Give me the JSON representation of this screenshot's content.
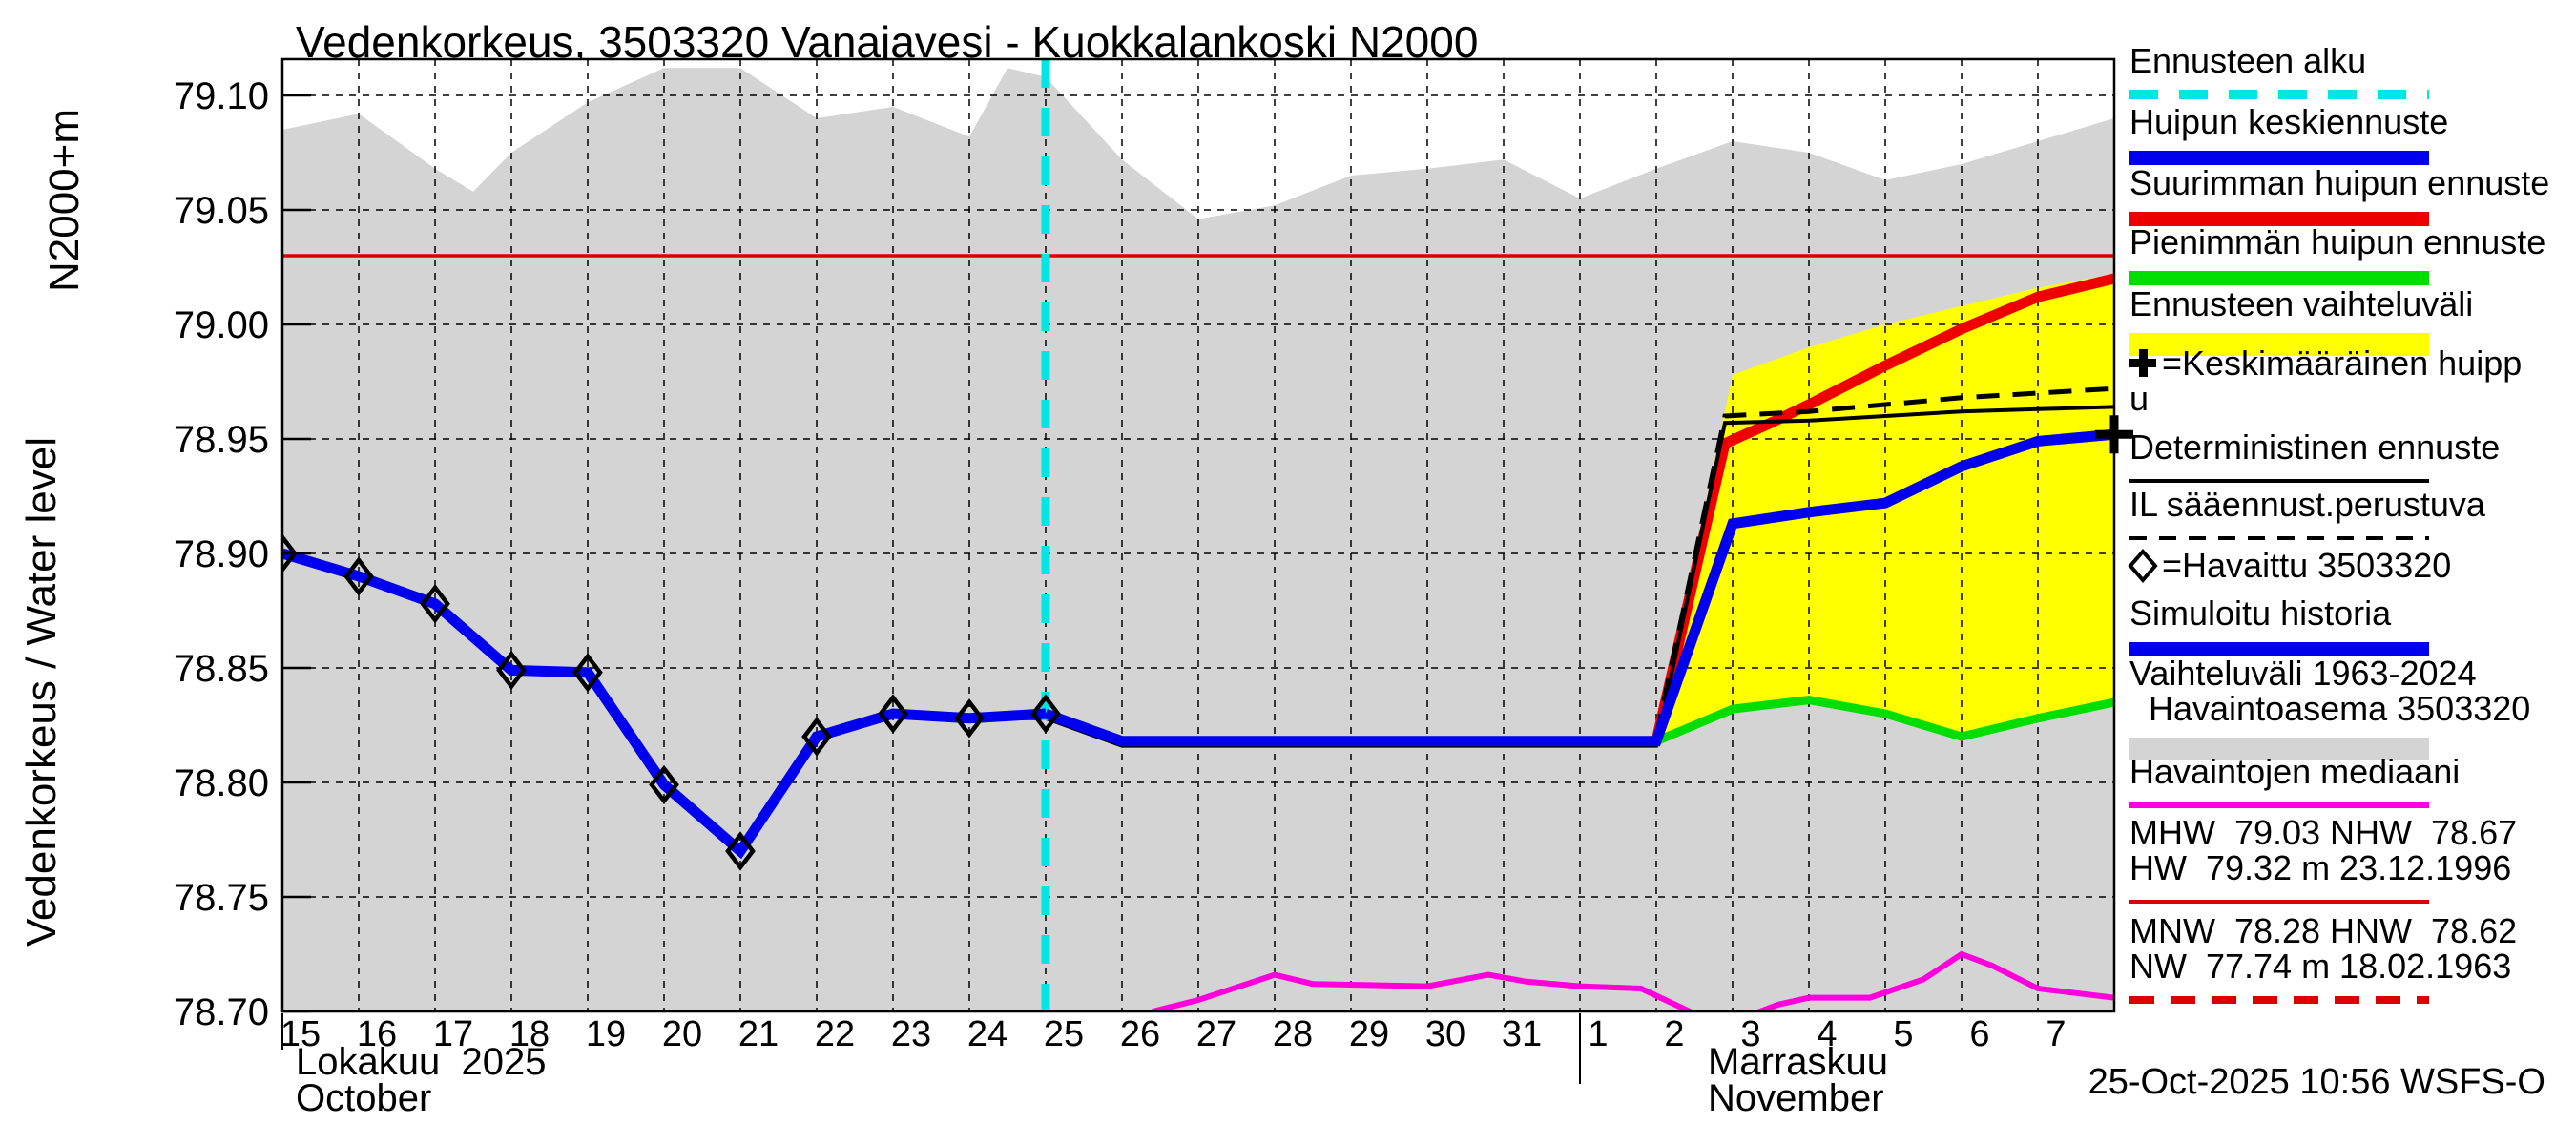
{
  "title": "Vedenkorkeus, 3503320 Vanajavesi - Kuokkalankoski N2000",
  "y_axis": {
    "axis_label": "Vedenkorkeus / Water level",
    "datum_label": "N2000+m",
    "tick_labels": [
      "79.10",
      "79.05",
      "79.00",
      "78.95",
      "78.90",
      "78.85",
      "78.80",
      "78.75",
      "78.70"
    ]
  },
  "x_axis": {
    "october_tick_labels": [
      "15",
      "16",
      "17",
      "18",
      "19",
      "20",
      "21",
      "22",
      "23",
      "24",
      "25",
      "26",
      "27",
      "28",
      "29",
      "30",
      "31"
    ],
    "november_tick_labels": [
      "1",
      "2",
      "3",
      "4",
      "5",
      "6",
      "7"
    ],
    "month_left_fi": "Lokakuu  2025",
    "month_left_en": "October",
    "month_right_fi": "Marraskuu",
    "month_right_en": "November"
  },
  "footer": {
    "timestamp": "25-Oct-2025 10:56 WSFS-O"
  },
  "legend": [
    {
      "lines": [
        "Ennusteen alku"
      ],
      "sample": "cyan-dashed"
    },
    {
      "lines": [
        "Huipun keskiennuste"
      ],
      "sample": "blue-bar"
    },
    {
      "lines": [
        "Suurimman huipun ennuste"
      ],
      "sample": "red-bar"
    },
    {
      "lines": [
        "Pienimmän huipun ennuste"
      ],
      "sample": "green-bar"
    },
    {
      "lines": [
        "Ennusteen vaihteluväli"
      ],
      "sample": "yellow-bar"
    },
    {
      "lines": [
        "+=Keskimääräinen huipp",
        "u"
      ],
      "marker": "plus"
    },
    {
      "lines": [
        "Deterministinen ennuste"
      ],
      "sample": "black-line"
    },
    {
      "lines": [
        "IL sääennust.perustuva"
      ],
      "sample": "black-dashed"
    },
    {
      "lines": [
        "◇=Havaittu 3503320"
      ],
      "marker": "diamond"
    },
    {
      "lines": [
        "Simuloitu historia"
      ],
      "sample": "blue-bar"
    },
    {
      "lines": [
        "Vaihteluväli 1963-2024",
        "  Havaintoasema 3503320"
      ],
      "sample": "gray-bar"
    },
    {
      "lines": [
        "Havaintojen mediaani"
      ],
      "sample": "magenta-line"
    },
    {
      "lines": [
        "MHW  79.03 NHW  78.67",
        "HW  79.32 m 23.12.1996"
      ],
      "sample": "red-line"
    },
    {
      "lines": [
        "MNW  78.28 HNW  78.62",
        "NW  77.74 m 18.02.1963"
      ],
      "sample": "red-dashed"
    }
  ],
  "colors": {
    "blue": "#0000ee",
    "red": "#ee0000",
    "green": "#00dd00",
    "yellow": "#ffff00",
    "cyan": "#00e6e6",
    "magenta": "#ff00dd",
    "gray_band": "#d4d4d4",
    "mhw_red": "#dd0000",
    "black": "#000000"
  },
  "chart_data": {
    "type": "line",
    "x_epoch": "2025-10-15",
    "x_unit": "days from 15 Oct 2025, axis spans 15 Oct - 8 Nov",
    "x_range_days": [
      0,
      24
    ],
    "ylim": [
      78.7,
      79.1
    ],
    "ylabel": "Vedenkorkeus / Water level (N2000+m)",
    "forecast_start_day": 10,
    "reference_lines": [
      {
        "name": "MHW",
        "value": 79.03
      }
    ],
    "series": [
      {
        "name": "havaittu_observed",
        "legend": "Havaittu 3503320",
        "color": "blue",
        "marker": "diamond",
        "points": [
          [
            0,
            78.9
          ],
          [
            1,
            78.89
          ],
          [
            2,
            78.878
          ],
          [
            3,
            78.849
          ],
          [
            4,
            78.848
          ],
          [
            5,
            78.799
          ],
          [
            6,
            78.77
          ],
          [
            7,
            78.82
          ],
          [
            8,
            78.83
          ],
          [
            9,
            78.828
          ],
          [
            10,
            78.83
          ]
        ]
      },
      {
        "name": "huipun_keskiennuste_blue",
        "legend": "Huipun keskiennuste",
        "color": "blue",
        "end_marker": "plus",
        "points": [
          [
            10,
            78.83
          ],
          [
            11,
            78.818
          ],
          [
            18,
            78.818
          ],
          [
            19,
            78.913
          ],
          [
            20,
            78.918
          ],
          [
            21,
            78.922
          ],
          [
            22,
            78.938
          ],
          [
            23,
            78.949
          ],
          [
            24,
            78.952
          ]
        ]
      },
      {
        "name": "deterministinen_black",
        "legend": "Deterministinen ennuste",
        "color": "black",
        "points": [
          [
            8,
            78.83
          ],
          [
            9,
            78.828
          ],
          [
            10,
            78.828
          ],
          [
            11,
            78.816
          ],
          [
            18,
            78.816
          ],
          [
            18.9,
            78.957
          ],
          [
            20,
            78.958
          ],
          [
            21,
            78.96
          ],
          [
            22,
            78.962
          ],
          [
            23,
            78.963
          ],
          [
            24,
            78.964
          ]
        ]
      },
      {
        "name": "keskimaarainen_huippu_dashed",
        "legend": "Keskimääräinen huippu",
        "color": "black",
        "dashed": true,
        "points": [
          [
            18,
            78.82
          ],
          [
            18.9,
            78.96
          ],
          [
            20,
            78.962
          ],
          [
            21,
            78.965
          ],
          [
            22,
            78.968
          ],
          [
            23,
            78.97
          ],
          [
            24,
            78.972
          ]
        ]
      },
      {
        "name": "suurin_huippu_red",
        "legend": "Suurimman huipun ennuste",
        "color": "red",
        "points": [
          [
            18,
            78.818
          ],
          [
            18.9,
            78.948
          ],
          [
            19.5,
            78.957
          ],
          [
            20,
            78.965
          ],
          [
            21,
            78.982
          ],
          [
            22,
            78.998
          ],
          [
            23,
            79.012
          ],
          [
            24,
            79.02
          ]
        ]
      },
      {
        "name": "pienin_huippu_green",
        "legend": "Pienimmän huipun ennuste",
        "color": "green",
        "points": [
          [
            18,
            78.818
          ],
          [
            19,
            78.832
          ],
          [
            20,
            78.836
          ],
          [
            21,
            78.83
          ],
          [
            22,
            78.82
          ],
          [
            23,
            78.828
          ],
          [
            24,
            78.835
          ]
        ]
      },
      {
        "name": "mediaani_magenta",
        "legend": "Havaintojen mediaani",
        "color": "magenta",
        "points": [
          [
            11.4,
            78.7
          ],
          [
            12,
            78.705
          ],
          [
            13,
            78.716
          ],
          [
            13.5,
            78.712
          ],
          [
            15,
            78.711
          ],
          [
            15.8,
            78.716
          ],
          [
            16.3,
            78.713
          ],
          [
            17,
            78.711
          ],
          [
            17.8,
            78.71
          ],
          [
            18.5,
            78.699
          ],
          [
            19.2,
            78.698
          ],
          [
            19.6,
            78.703
          ],
          [
            20,
            78.706
          ],
          [
            20.8,
            78.706
          ],
          [
            21.5,
            78.714
          ],
          [
            22,
            78.725
          ],
          [
            22.4,
            78.72
          ],
          [
            23,
            78.71
          ],
          [
            24,
            78.706
          ]
        ]
      }
    ],
    "bands": [
      {
        "name": "vaihteluvali_1963_2024_gray",
        "legend": "Vaihteluväli 1963-2024 Havaintoasema 3503320",
        "color": "gray_band",
        "bottom": 78.7,
        "top": [
          [
            0,
            79.085
          ],
          [
            1,
            79.092
          ],
          [
            2,
            79.068
          ],
          [
            2.5,
            79.058
          ],
          [
            3,
            79.075
          ],
          [
            4,
            79.097
          ],
          [
            5,
            79.112
          ],
          [
            6,
            79.112
          ],
          [
            7,
            79.09
          ],
          [
            8,
            79.095
          ],
          [
            9,
            79.082
          ],
          [
            9.5,
            79.112
          ],
          [
            10,
            79.108
          ],
          [
            11,
            79.072
          ],
          [
            12,
            79.046
          ],
          [
            13,
            79.052
          ],
          [
            14,
            79.065
          ],
          [
            15,
            79.068
          ],
          [
            16,
            79.072
          ],
          [
            17,
            79.055
          ],
          [
            18,
            79.068
          ],
          [
            19,
            79.08
          ],
          [
            20,
            79.075
          ],
          [
            21,
            79.063
          ],
          [
            22,
            79.07
          ],
          [
            23,
            79.08
          ],
          [
            24,
            79.09
          ]
        ]
      },
      {
        "name": "ennusteen_vaihteluvali_yellow",
        "legend": "Ennusteen vaihteluväli",
        "color": "yellow",
        "bottom_series": "pienin_huippu_green",
        "top": [
          [
            18,
            78.818
          ],
          [
            19,
            78.978
          ],
          [
            20,
            78.99
          ],
          [
            21,
            79.0
          ],
          [
            22,
            79.008
          ],
          [
            23,
            79.016
          ],
          [
            24,
            79.022
          ]
        ]
      }
    ],
    "stats": {
      "MHW": "79.03",
      "NHW": "78.67",
      "HW": "79.32 m 23.12.1996",
      "MNW": "78.28",
      "HNW": "78.62",
      "NW": "77.74 m 18.02.1963"
    }
  }
}
